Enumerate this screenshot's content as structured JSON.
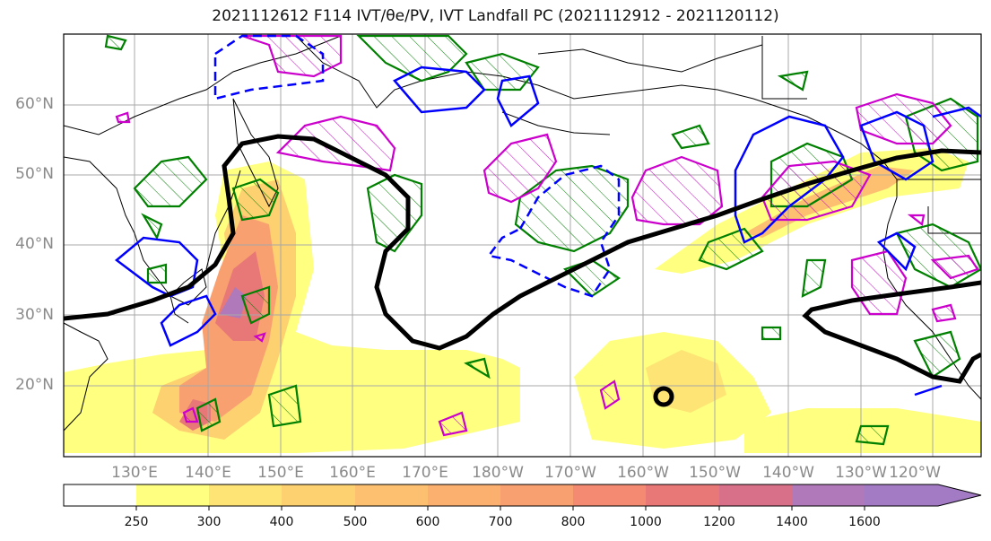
{
  "title": "2021112612 F114 IVT/θe/PV, IVT Landfall PC (2021112912 - 2021120112)",
  "map": {
    "lat_labels": [
      "60°N",
      "50°N",
      "40°N",
      "30°N",
      "20°N"
    ],
    "lon_labels": [
      "130°E",
      "140°E",
      "150°E",
      "160°E",
      "170°E",
      "180°W",
      "170°W",
      "160°W",
      "150°W",
      "140°W",
      "130°W",
      "120°W"
    ]
  },
  "colorbar": {
    "ticks": [
      "250",
      "300",
      "400",
      "500",
      "600",
      "700",
      "800",
      "1000",
      "1200",
      "1400",
      "1600"
    ],
    "colors": [
      "#ffff80",
      "#fde475",
      "#fdd070",
      "#fcc070",
      "#fbb070",
      "#f8a070",
      "#f48a72",
      "#e87778",
      "#d9708a",
      "#b07aba",
      "#a37ac4"
    ]
  },
  "legend_colors": {
    "thick_contour": "#000000",
    "pv_positive": "#cc00cc",
    "theta_e": "#0000ff",
    "green_hatch": "#008000"
  }
}
